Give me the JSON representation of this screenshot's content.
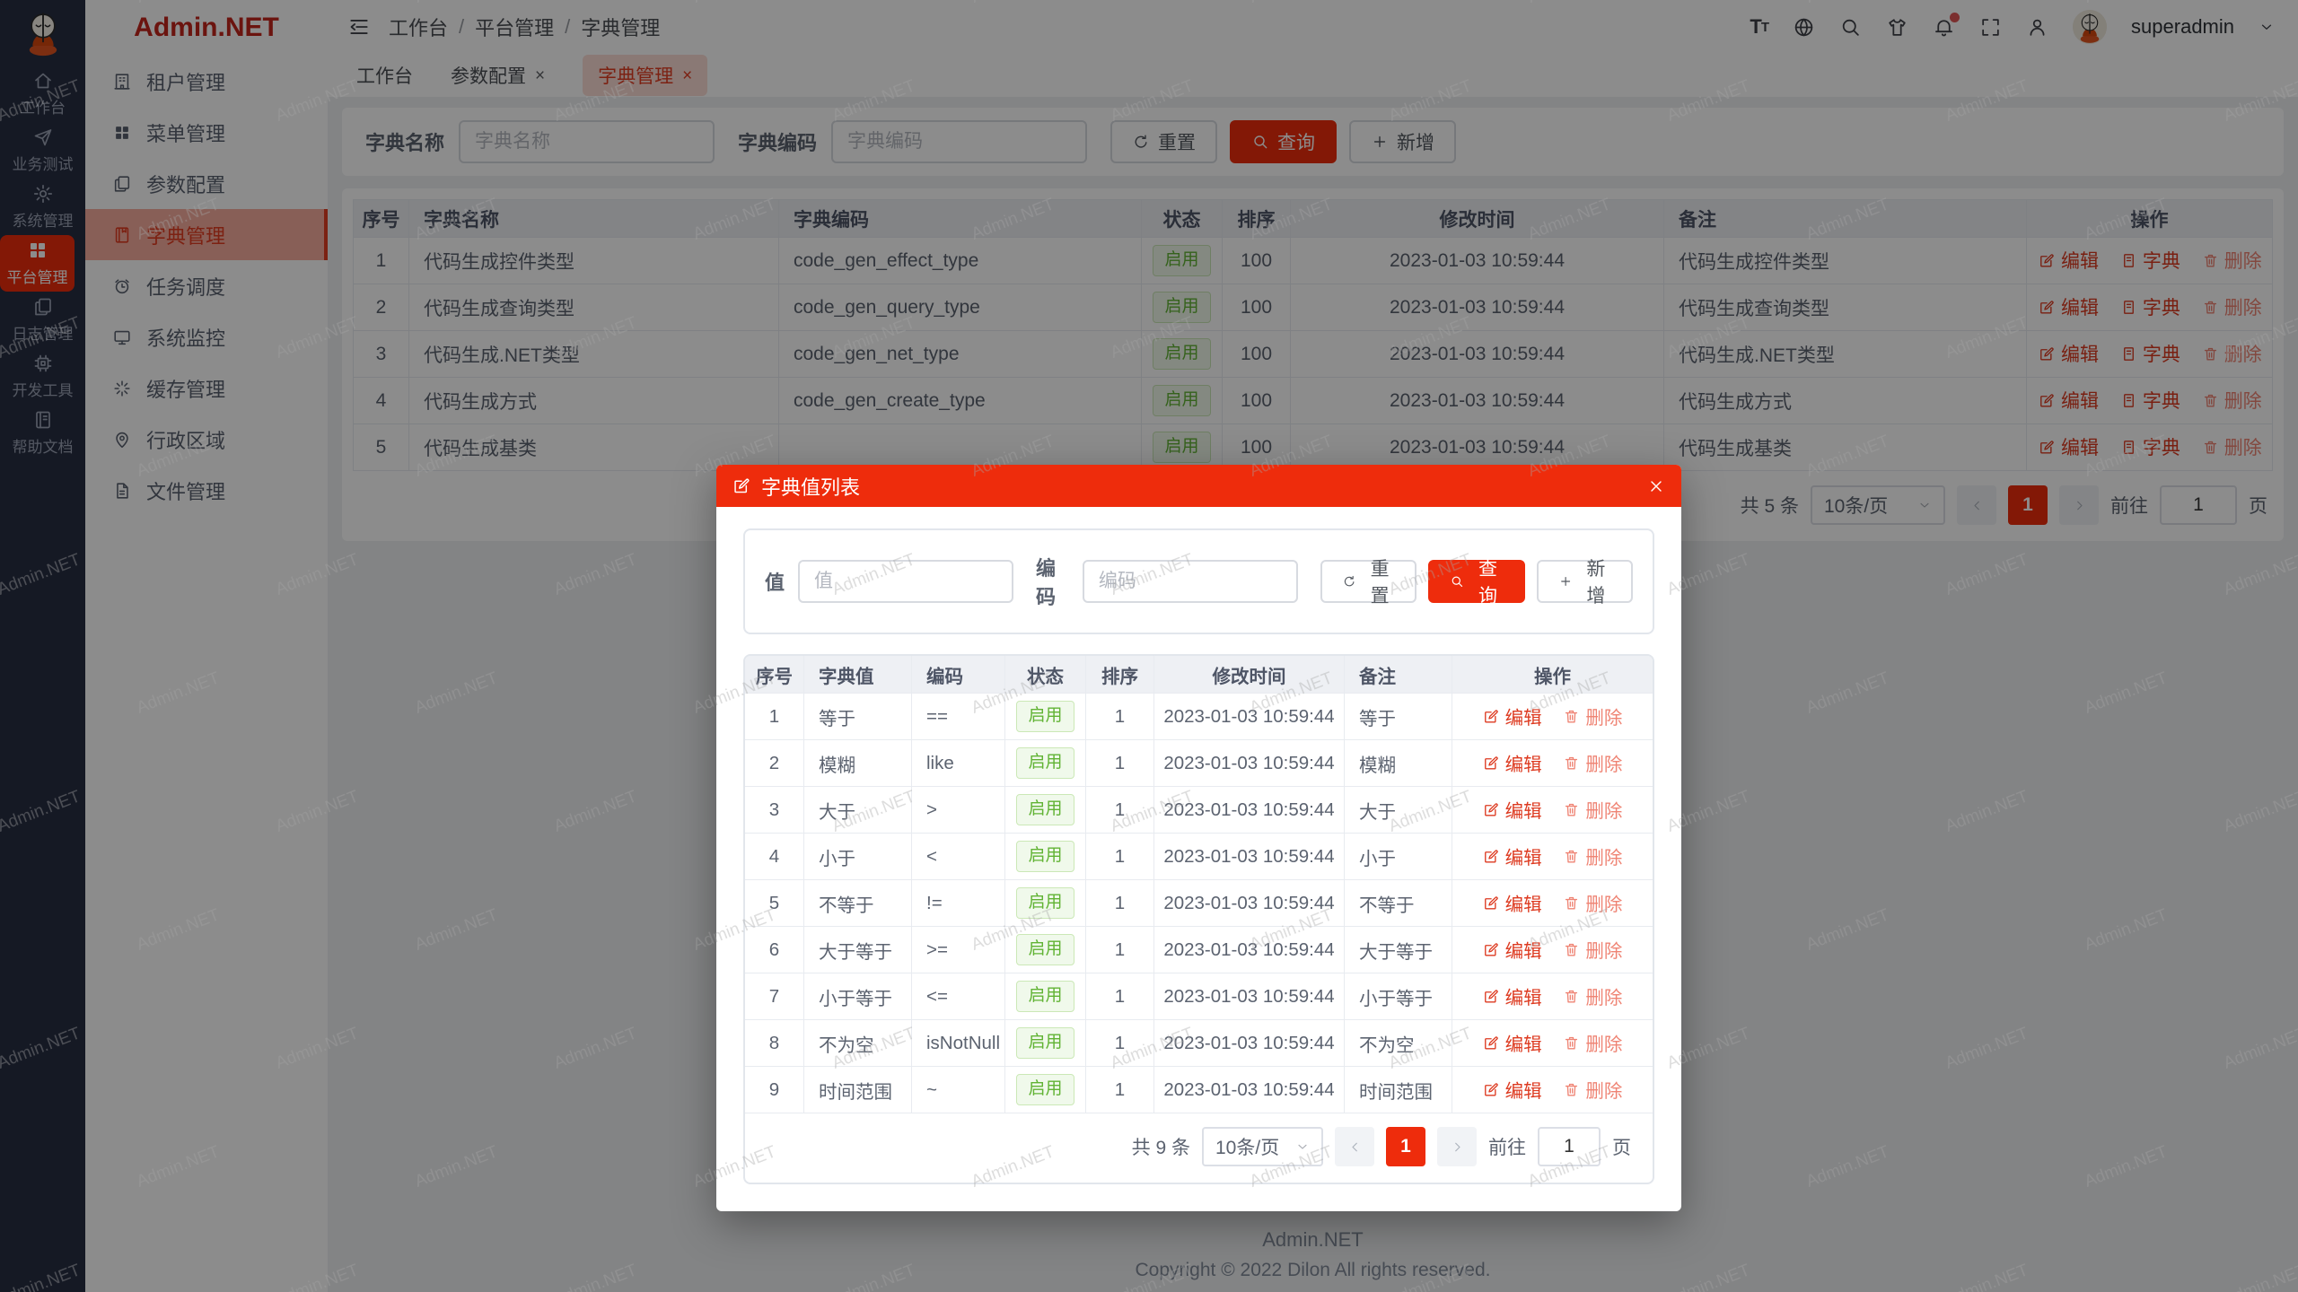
{
  "watermark": {
    "text": "Admin.NET"
  },
  "colors": {
    "primary": "#ee2c0c",
    "rail_bg": "#272e43",
    "active_menu_bg": "#f8ad9f",
    "status_green": "#61b334",
    "status_green_bg": "#f0f9eb"
  },
  "rail": {
    "items": [
      {
        "label": "工作台",
        "icon": "home-icon"
      },
      {
        "label": "业务测试",
        "icon": "send-icon"
      },
      {
        "label": "系统管理",
        "icon": "gear-icon"
      },
      {
        "label": "平台管理",
        "icon": "grid-icon",
        "active": true
      },
      {
        "label": "日志管理",
        "icon": "copy-icon"
      },
      {
        "label": "开发工具",
        "icon": "cpu-icon"
      },
      {
        "label": "帮助文档",
        "icon": "book-icon"
      }
    ]
  },
  "sidebar": {
    "title": "Admin.NET",
    "items": [
      {
        "label": "租户管理",
        "icon": "office-building-icon"
      },
      {
        "label": "菜单管理",
        "icon": "menu-grid-icon"
      },
      {
        "label": "参数配置",
        "icon": "documents-icon"
      },
      {
        "label": "字典管理",
        "icon": "notebook-icon",
        "active": true
      },
      {
        "label": "任务调度",
        "icon": "alarm-clock-icon"
      },
      {
        "label": "系统监控",
        "icon": "monitor-icon"
      },
      {
        "label": "缓存管理",
        "icon": "loading-icon"
      },
      {
        "label": "行政区域",
        "icon": "location-icon"
      },
      {
        "label": "文件管理",
        "icon": "document-icon"
      }
    ]
  },
  "header": {
    "breadcrumb": {
      "item1": "工作台",
      "item2": "平台管理",
      "item3": "字典管理",
      "separator": "/"
    },
    "font_icon_big": "T",
    "font_icon_small": "T",
    "username": "superadmin"
  },
  "tabs": {
    "tab1": {
      "label": "工作台"
    },
    "tab2": {
      "label": "参数配置",
      "close": "×"
    },
    "tab3": {
      "label": "字典管理",
      "close": "×"
    }
  },
  "filter": {
    "name_label": "字典名称",
    "name_placeholder": "字典名称",
    "code_label": "字典编码",
    "code_placeholder": "字典编码",
    "reset_label": "重置",
    "search_label": "查询",
    "add_label": "新增"
  },
  "main_table": {
    "columns": {
      "no": "序号",
      "name": "字典名称",
      "code": "字典编码",
      "status": "状态",
      "sort": "排序",
      "time": "修改时间",
      "remark": "备注",
      "ops": "操作"
    },
    "ops": {
      "edit": "编辑",
      "dict": "字典",
      "delete": "删除"
    },
    "rows": [
      {
        "no": "1",
        "name": "代码生成控件类型",
        "code": "code_gen_effect_type",
        "status": "启用",
        "sort": "100",
        "time": "2023-01-03 10:59:44",
        "remark": "代码生成控件类型"
      },
      {
        "no": "2",
        "name": "代码生成查询类型",
        "code": "code_gen_query_type",
        "status": "启用",
        "sort": "100",
        "time": "2023-01-03 10:59:44",
        "remark": "代码生成查询类型"
      },
      {
        "no": "3",
        "name": "代码生成.NET类型",
        "code": "code_gen_net_type",
        "status": "启用",
        "sort": "100",
        "time": "2023-01-03 10:59:44",
        "remark": "代码生成.NET类型"
      },
      {
        "no": "4",
        "name": "代码生成方式",
        "code": "code_gen_create_type",
        "status": "启用",
        "sort": "100",
        "time": "2023-01-03 10:59:44",
        "remark": "代码生成方式"
      },
      {
        "no": "5",
        "name": "代码生成基类",
        "code": "",
        "status": "启用",
        "sort": "100",
        "time": "2023-01-03 10:59:44",
        "remark": "代码生成基类"
      }
    ]
  },
  "main_pagination": {
    "total": "共 5 条",
    "page_size": "10条/页",
    "current_page": "1",
    "goto_label": "前往",
    "goto_value": "1",
    "page_unit": "页"
  },
  "modal": {
    "title": "字典值列表",
    "filter": {
      "value_label": "值",
      "value_placeholder": "值",
      "code_label": "编码",
      "code_placeholder": "编码",
      "reset_label": "重置",
      "search_label": "查询",
      "add_label": "新增"
    },
    "table": {
      "columns": {
        "no": "序号",
        "value": "字典值",
        "code": "编码",
        "status": "状态",
        "sort": "排序",
        "time": "修改时间",
        "remark": "备注",
        "ops": "操作"
      },
      "ops": {
        "edit": "编辑",
        "delete": "删除"
      },
      "rows": [
        {
          "no": "1",
          "value": "等于",
          "code": "==",
          "status": "启用",
          "sort": "1",
          "time": "2023-01-03 10:59:44",
          "remark": "等于"
        },
        {
          "no": "2",
          "value": "模糊",
          "code": "like",
          "status": "启用",
          "sort": "1",
          "time": "2023-01-03 10:59:44",
          "remark": "模糊"
        },
        {
          "no": "3",
          "value": "大于",
          "code": ">",
          "status": "启用",
          "sort": "1",
          "time": "2023-01-03 10:59:44",
          "remark": "大于"
        },
        {
          "no": "4",
          "value": "小于",
          "code": "<",
          "status": "启用",
          "sort": "1",
          "time": "2023-01-03 10:59:44",
          "remark": "小于"
        },
        {
          "no": "5",
          "value": "不等于",
          "code": "!=",
          "status": "启用",
          "sort": "1",
          "time": "2023-01-03 10:59:44",
          "remark": "不等于"
        },
        {
          "no": "6",
          "value": "大于等于",
          "code": ">=",
          "status": "启用",
          "sort": "1",
          "time": "2023-01-03 10:59:44",
          "remark": "大于等于"
        },
        {
          "no": "7",
          "value": "小于等于",
          "code": "<=",
          "status": "启用",
          "sort": "1",
          "time": "2023-01-03 10:59:44",
          "remark": "小于等于"
        },
        {
          "no": "8",
          "value": "不为空",
          "code": "isNotNull",
          "status": "启用",
          "sort": "1",
          "time": "2023-01-03 10:59:44",
          "remark": "不为空"
        },
        {
          "no": "9",
          "value": "时间范围",
          "code": "~",
          "status": "启用",
          "sort": "1",
          "time": "2023-01-03 10:59:44",
          "remark": "时间范围"
        }
      ]
    },
    "pagination": {
      "total": "共 9 条",
      "page_size": "10条/页",
      "current_page": "1",
      "goto_label": "前往",
      "goto_value": "1",
      "page_unit": "页"
    }
  },
  "footer": {
    "line1": "Admin.NET",
    "line2": "Copyright © 2022 Dilon All rights reserved."
  }
}
